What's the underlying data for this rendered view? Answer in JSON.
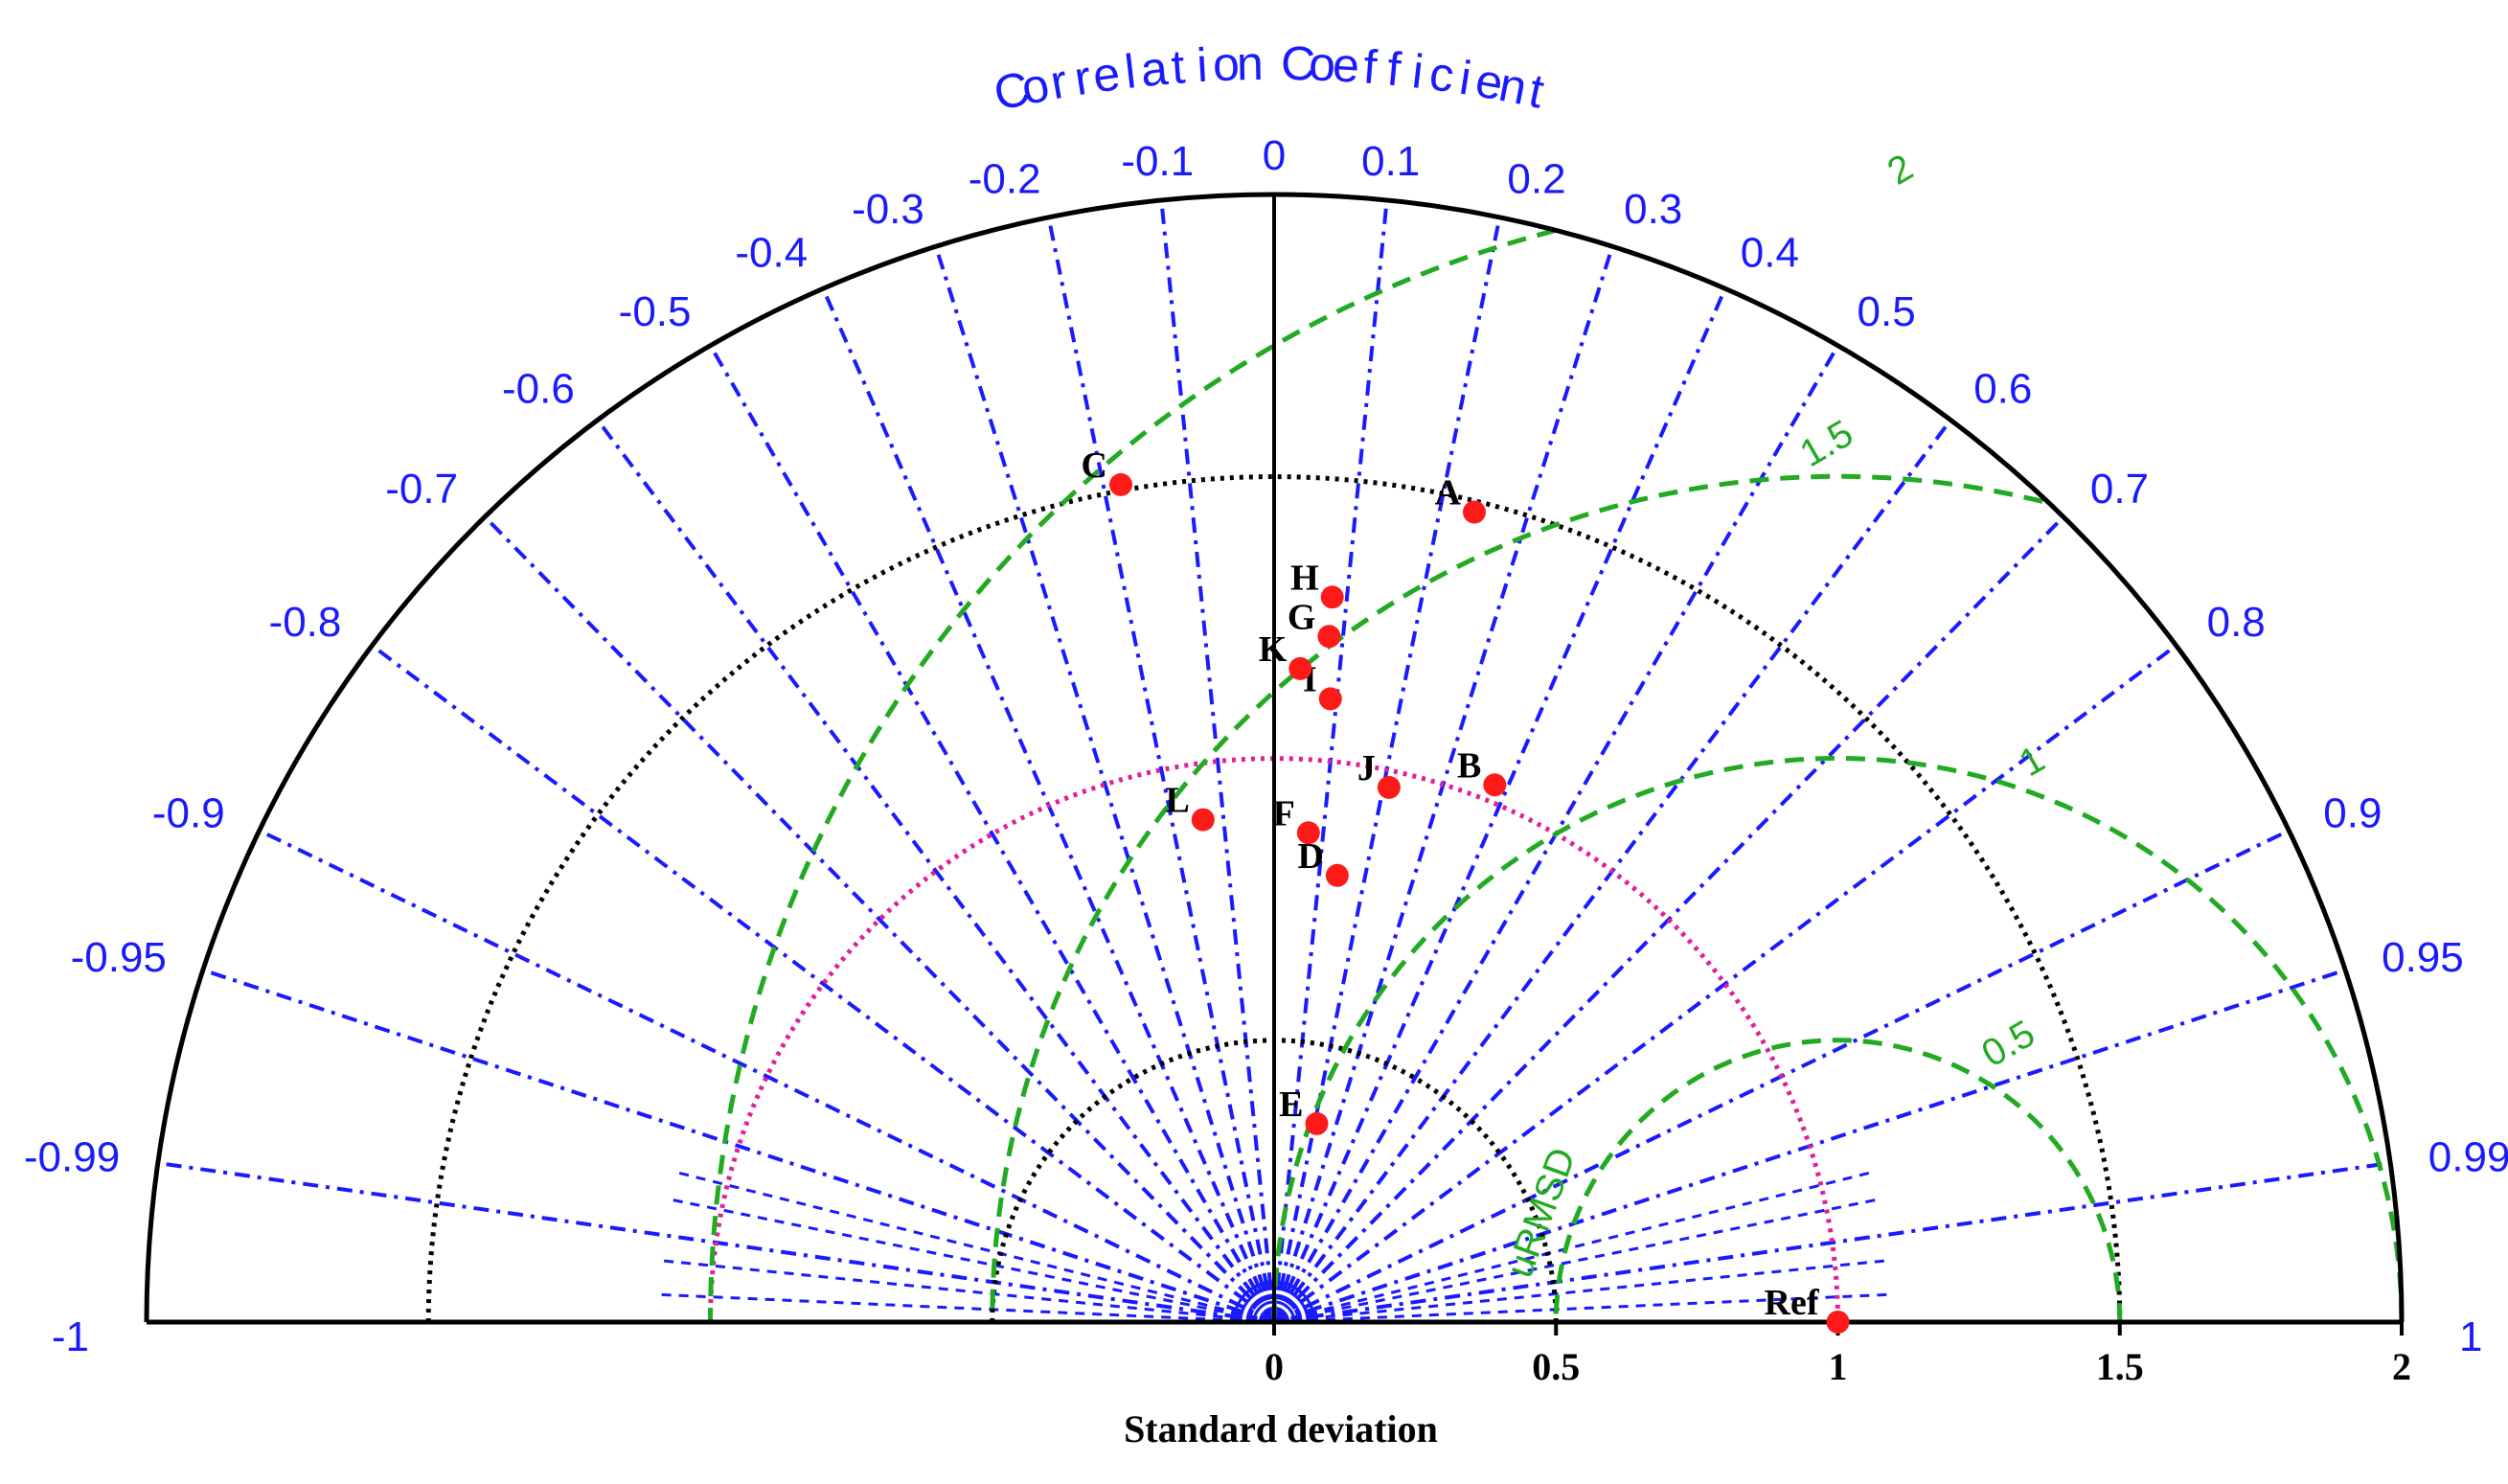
{
  "chart_data": {
    "type": "taylor",
    "title": "Correlation Coefficient",
    "xlabel": "Standard deviation",
    "std_range": [
      0,
      2
    ],
    "std_ticks": [
      {
        "value": 0,
        "label": "0"
      },
      {
        "value": 0.5,
        "label": "0.5"
      },
      {
        "value": 1,
        "label": "1"
      },
      {
        "value": 1.5,
        "label": "1.5"
      },
      {
        "value": 2,
        "label": "2"
      }
    ],
    "std_circles": [
      0.5,
      1,
      1.5
    ],
    "ref_std": 1,
    "correlation_ticks": [
      {
        "value": -1,
        "label": "-1"
      },
      {
        "value": -0.99,
        "label": "-0.99"
      },
      {
        "value": -0.95,
        "label": "-0.95"
      },
      {
        "value": -0.9,
        "label": "-0.9"
      },
      {
        "value": -0.8,
        "label": "-0.8"
      },
      {
        "value": -0.7,
        "label": "-0.7"
      },
      {
        "value": -0.6,
        "label": "-0.6"
      },
      {
        "value": -0.5,
        "label": "-0.5"
      },
      {
        "value": -0.4,
        "label": "-0.4"
      },
      {
        "value": -0.3,
        "label": "-0.3"
      },
      {
        "value": -0.2,
        "label": "-0.2"
      },
      {
        "value": -0.1,
        "label": "-0.1"
      },
      {
        "value": 0,
        "label": "0"
      },
      {
        "value": 0.1,
        "label": "0.1"
      },
      {
        "value": 0.2,
        "label": "0.2"
      },
      {
        "value": 0.3,
        "label": "0.3"
      },
      {
        "value": 0.4,
        "label": "0.4"
      },
      {
        "value": 0.5,
        "label": "0.5"
      },
      {
        "value": 0.6,
        "label": "0.6"
      },
      {
        "value": 0.7,
        "label": "0.7"
      },
      {
        "value": 0.8,
        "label": "0.8"
      },
      {
        "value": 0.9,
        "label": "0.9"
      },
      {
        "value": 0.95,
        "label": "0.95"
      },
      {
        "value": 0.99,
        "label": "0.99"
      },
      {
        "value": 1,
        "label": "1"
      }
    ],
    "rmsd_contours": [
      {
        "value": 0.5,
        "label": "0.5"
      },
      {
        "value": 1,
        "label": "1"
      },
      {
        "value": 1.5,
        "label": "1.5"
      },
      {
        "value": 2,
        "label": "2"
      }
    ],
    "rmsd_axis_label": "uRMSD",
    "points": [
      {
        "label": "Ref",
        "std": 1.0,
        "corr": 1.0
      },
      {
        "label": "A",
        "std": 1.48,
        "corr": 0.24
      },
      {
        "label": "B",
        "std": 1.03,
        "corr": 0.38
      },
      {
        "label": "C",
        "std": 1.51,
        "corr": -0.18
      },
      {
        "label": "D",
        "std": 0.8,
        "corr": 0.14
      },
      {
        "label": "E",
        "std": 0.36,
        "corr": 0.21
      },
      {
        "label": "F",
        "std": 0.87,
        "corr": 0.07
      },
      {
        "label": "G",
        "std": 1.22,
        "corr": 0.08
      },
      {
        "label": "H",
        "std": 1.29,
        "corr": 0.08
      },
      {
        "label": "I",
        "std": 1.11,
        "corr": 0.09
      },
      {
        "label": "J",
        "std": 0.97,
        "corr": 0.21
      },
      {
        "label": "K",
        "std": 1.16,
        "corr": 0.04
      },
      {
        "label": "L",
        "std": 0.9,
        "corr": -0.14
      }
    ],
    "colors": {
      "axis": "#000000",
      "corr_lines": "#1a1aff",
      "rmsd": "#22aa22",
      "std_circle": "#000000",
      "ref_circle": "#e0209a",
      "point": "#ff1a1a"
    }
  }
}
